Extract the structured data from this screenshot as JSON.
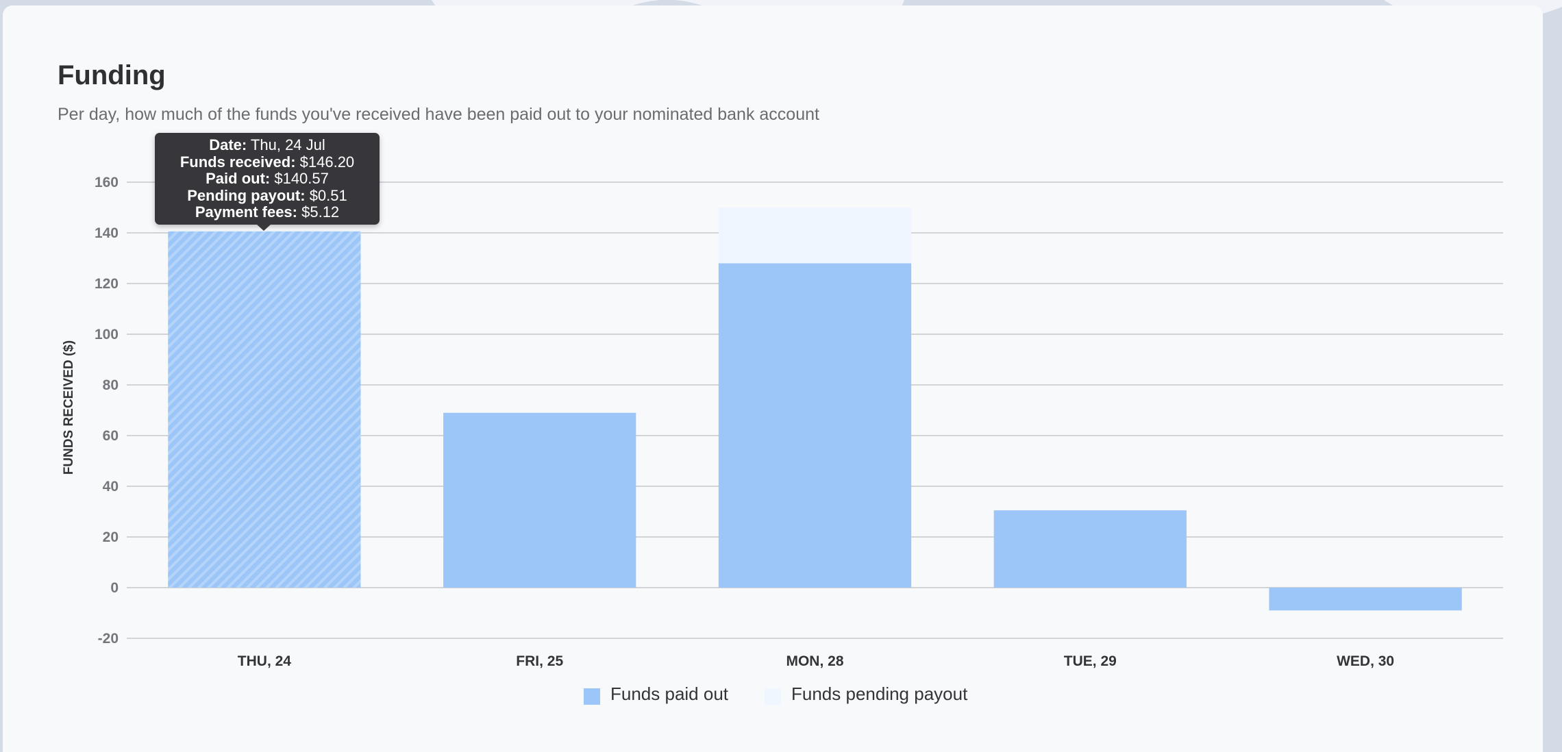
{
  "header": {
    "title": "Funding",
    "subtitle": "Per day, how much of the funds you've received have been paid out to your nominated bank account"
  },
  "tooltip": {
    "date_label": "Date:",
    "date_value": " Thu, 24 Jul",
    "received_label": "Funds received:",
    "received_value": " $146.20",
    "paid_label": "Paid out:",
    "paid_value": " $140.57",
    "pending_label": "Pending payout:",
    "pending_value": " $0.51",
    "fees_label": "Payment fees:",
    "fees_value": " $5.12"
  },
  "chart_data": {
    "type": "bar",
    "stacked": true,
    "ylabel": "FUNDS RECEIVED ($)",
    "xlabel": "",
    "ylim": [
      -20,
      160
    ],
    "yticks": [
      160,
      140,
      120,
      100,
      80,
      60,
      40,
      20,
      0,
      -20
    ],
    "grid": true,
    "legend_position": "bottom",
    "categories": [
      "THU, 24",
      "FRI, 25",
      "MON, 28",
      "TUE, 29",
      "WED, 30"
    ],
    "highlighted_category": "THU, 24",
    "series": [
      {
        "name": "Funds paid out",
        "values": [
          140.57,
          69,
          128,
          30.5,
          -9
        ],
        "color": "#9cc5f8"
      },
      {
        "name": "Funds pending payout",
        "values": [
          0.51,
          0,
          22,
          0,
          0
        ],
        "color": "#eff6ff"
      }
    ]
  },
  "colors": {
    "card": "#f8f9fb",
    "grid": "#d2d3d6",
    "tooltip": "#36363b"
  }
}
